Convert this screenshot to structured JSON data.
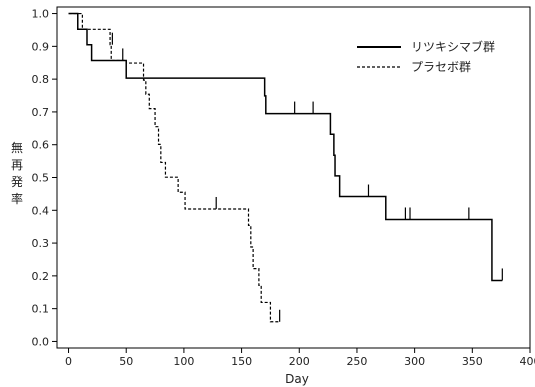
{
  "chart_data": {
    "type": "line",
    "title": "",
    "xlabel": "Day",
    "ylabel": "無再発率",
    "xlim": [
      -10,
      400
    ],
    "ylim": [
      -0.02,
      1.02
    ],
    "xticks": [
      0,
      50,
      100,
      150,
      200,
      250,
      300,
      350,
      400
    ],
    "yticks": [
      0.0,
      0.1,
      0.2,
      0.3,
      0.4,
      0.5,
      0.6,
      0.7,
      0.8,
      0.9,
      1.0
    ],
    "ytick_labels": [
      "0.0",
      "0.1",
      "0.2",
      "0.3",
      "0.4",
      "0.5",
      "0.6",
      "0.7",
      "0.8",
      "0.9",
      "1.0"
    ],
    "legend_position": "top-right",
    "series": [
      {
        "name": "リツキシマブ群",
        "style": "solid",
        "color": "#000000",
        "steps": [
          [
            0,
            1.0
          ],
          [
            8,
            0.952
          ],
          [
            16,
            0.905
          ],
          [
            20,
            0.857
          ],
          [
            44,
            0.857
          ],
          [
            50,
            0.803
          ],
          [
            154,
            0.803
          ],
          [
            170,
            0.749
          ],
          [
            171,
            0.695
          ],
          [
            225,
            0.695
          ],
          [
            227,
            0.632
          ],
          [
            230,
            0.568
          ],
          [
            231,
            0.505
          ],
          [
            235,
            0.442
          ],
          [
            273,
            0.442
          ],
          [
            275,
            0.372
          ],
          [
            366,
            0.372
          ],
          [
            367,
            0.186
          ],
          [
            376,
            0.186
          ]
        ],
        "censored": [
          [
            47,
            0.857
          ],
          [
            196,
            0.695
          ],
          [
            212,
            0.695
          ],
          [
            260,
            0.442
          ],
          [
            292,
            0.372
          ],
          [
            296,
            0.372
          ],
          [
            347,
            0.372
          ],
          [
            376,
            0.186
          ]
        ]
      },
      {
        "name": "プラセボ群",
        "style": "dashed",
        "color": "#000000",
        "steps": [
          [
            0,
            1.0
          ],
          [
            12,
            0.952
          ],
          [
            36,
            0.905
          ],
          [
            37,
            0.857
          ],
          [
            48,
            0.857
          ],
          [
            50,
            0.849
          ],
          [
            65,
            0.797
          ],
          [
            67,
            0.754
          ],
          [
            70,
            0.71
          ],
          [
            75,
            0.655
          ],
          [
            78,
            0.601
          ],
          [
            80,
            0.546
          ],
          [
            84,
            0.501
          ],
          [
            95,
            0.455
          ],
          [
            101,
            0.404
          ],
          [
            155,
            0.404
          ],
          [
            156,
            0.354
          ],
          [
            158,
            0.288
          ],
          [
            160,
            0.222
          ],
          [
            165,
            0.171
          ],
          [
            167,
            0.119
          ],
          [
            175,
            0.06
          ],
          [
            183,
            0.06
          ]
        ],
        "censored": [
          [
            38,
            0.905
          ],
          [
            128,
            0.404
          ],
          [
            183,
            0.06
          ]
        ]
      }
    ]
  }
}
